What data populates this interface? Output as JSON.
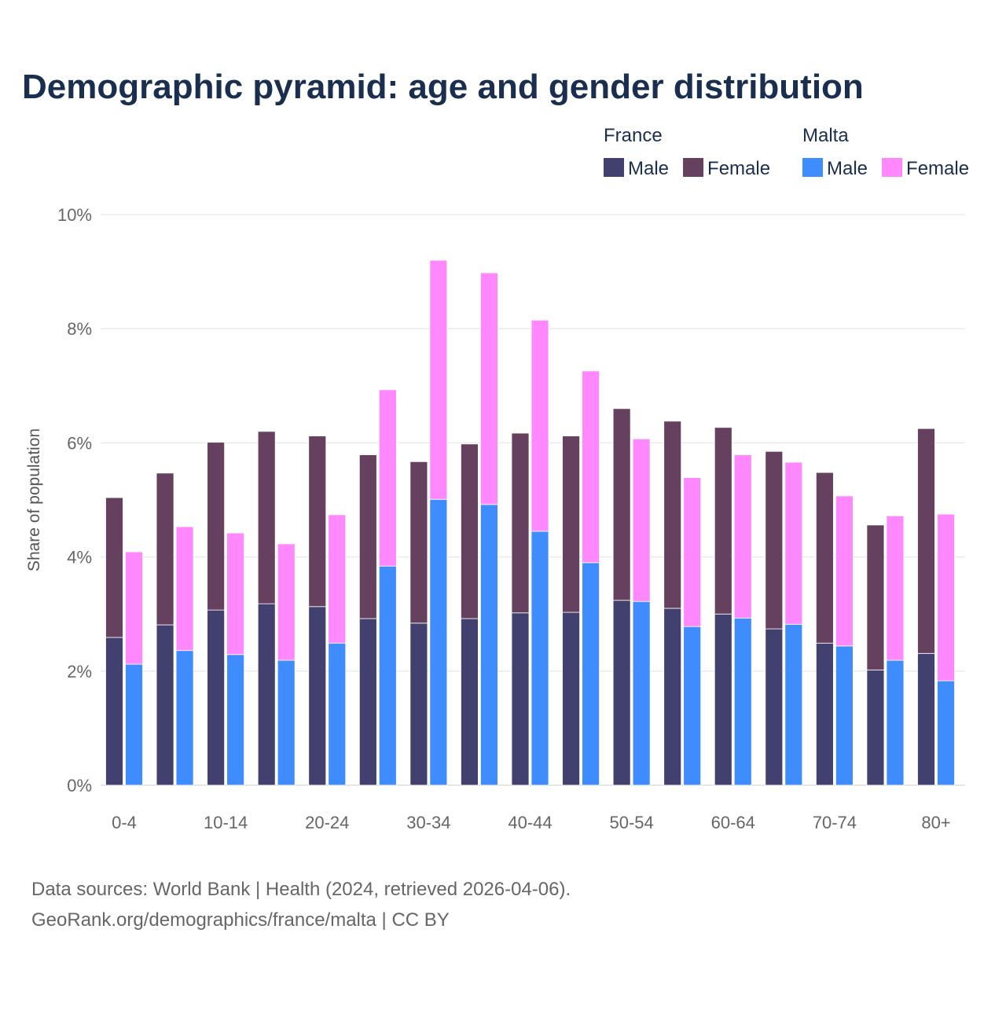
{
  "chart_data": {
    "type": "bar",
    "stacked": true,
    "grouped": true,
    "title": "Demographic pyramid: age and gender distribution",
    "ylabel": "Share of population",
    "xlabel": "",
    "ylim": [
      0,
      10
    ],
    "yticks": [
      0,
      2,
      4,
      6,
      8,
      10
    ],
    "ytick_labels": [
      "0%",
      "2%",
      "4%",
      "6%",
      "8%",
      "10%"
    ],
    "grid": true,
    "legend_position": "top-right",
    "categories": [
      "0-4",
      "5-9",
      "10-14",
      "15-19",
      "20-24",
      "25-29",
      "30-34",
      "35-39",
      "40-44",
      "45-49",
      "50-54",
      "55-59",
      "60-64",
      "65-69",
      "70-74",
      "75-79",
      "80+"
    ],
    "xtick_labels": [
      "0-4",
      "10-14",
      "20-24",
      "30-34",
      "40-44",
      "50-54",
      "60-64",
      "70-74",
      "80+"
    ],
    "groups": [
      {
        "name": "France",
        "series": [
          {
            "name": "Male",
            "color": "#41406f",
            "values": [
              2.59,
              2.81,
              3.07,
              3.18,
              3.13,
              2.92,
              2.84,
              2.92,
              3.02,
              3.03,
              3.24,
              3.1,
              3.0,
              2.74,
              2.49,
              2.02,
              2.31
            ]
          },
          {
            "name": "Female",
            "color": "#66405f",
            "values": [
              2.45,
              2.66,
              2.94,
              3.02,
              2.99,
              2.87,
              2.83,
              3.06,
              3.15,
              3.09,
              3.36,
              3.28,
              3.27,
              3.11,
              2.99,
              2.54,
              3.94
            ]
          }
        ]
      },
      {
        "name": "Malta",
        "series": [
          {
            "name": "Male",
            "color": "#3f8cff",
            "values": [
              2.12,
              2.36,
              2.29,
              2.19,
              2.49,
              3.84,
              5.01,
              4.92,
              4.45,
              3.9,
              3.22,
              2.78,
              2.93,
              2.82,
              2.44,
              2.19,
              1.83
            ]
          },
          {
            "name": "Female",
            "color": "#ff88ff",
            "values": [
              1.97,
              2.17,
              2.13,
              2.04,
              2.25,
              3.09,
              4.19,
              4.06,
              3.7,
              3.36,
              2.85,
              2.61,
              2.86,
              2.84,
              2.63,
              2.53,
              2.92
            ]
          }
        ]
      }
    ]
  },
  "footer": {
    "source": "Data sources: World Bank | Health (2024, retrieved 2026-04-06).",
    "credit": "GeoRank.org/demographics/france/malta | CC BY"
  }
}
